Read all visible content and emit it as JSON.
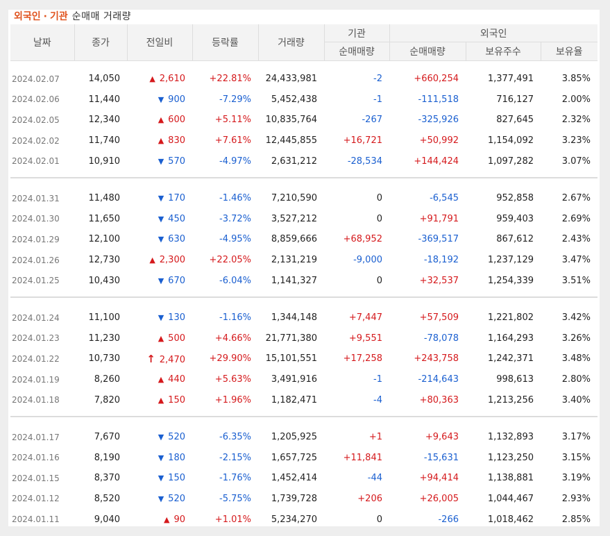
{
  "title": {
    "part1": "외국인",
    "sep": "·",
    "part2": "기관",
    "part3": "순매매 거래량"
  },
  "headers": {
    "date": "날짜",
    "close": "종가",
    "change": "전일비",
    "rate": "등락률",
    "volume": "거래량",
    "inst_group": "기관",
    "foreign_group": "외국인",
    "inst_net": "순매매량",
    "foreign_net": "순매매량",
    "holdings": "보유주수",
    "ratio": "보유율"
  },
  "colors": {
    "up": "#d5191c",
    "down": "#1a5fd0"
  },
  "groups": [
    [
      {
        "date": "2024.02.07",
        "close": "14,050",
        "dir": "up",
        "change": "2,610",
        "rate": "+22.81%",
        "volume": "24,433,981",
        "inst": "-2",
        "foreign": "+660,254",
        "holdings": "1,377,491",
        "ratio": "3.85%"
      },
      {
        "date": "2024.02.06",
        "close": "11,440",
        "dir": "down",
        "change": "900",
        "rate": "-7.29%",
        "volume": "5,452,438",
        "inst": "-1",
        "foreign": "-111,518",
        "holdings": "716,127",
        "ratio": "2.00%"
      },
      {
        "date": "2024.02.05",
        "close": "12,340",
        "dir": "up",
        "change": "600",
        "rate": "+5.11%",
        "volume": "10,835,764",
        "inst": "-267",
        "foreign": "-325,926",
        "holdings": "827,645",
        "ratio": "2.32%"
      },
      {
        "date": "2024.02.02",
        "close": "11,740",
        "dir": "up",
        "change": "830",
        "rate": "+7.61%",
        "volume": "12,445,855",
        "inst": "+16,721",
        "foreign": "+50,992",
        "holdings": "1,154,092",
        "ratio": "3.23%"
      },
      {
        "date": "2024.02.01",
        "close": "10,910",
        "dir": "down",
        "change": "570",
        "rate": "-4.97%",
        "volume": "2,631,212",
        "inst": "-28,534",
        "foreign": "+144,424",
        "holdings": "1,097,282",
        "ratio": "3.07%"
      }
    ],
    [
      {
        "date": "2024.01.31",
        "close": "11,480",
        "dir": "down",
        "change": "170",
        "rate": "-1.46%",
        "volume": "7,210,590",
        "inst": "0",
        "foreign": "-6,545",
        "holdings": "952,858",
        "ratio": "2.67%"
      },
      {
        "date": "2024.01.30",
        "close": "11,650",
        "dir": "down",
        "change": "450",
        "rate": "-3.72%",
        "volume": "3,527,212",
        "inst": "0",
        "foreign": "+91,791",
        "holdings": "959,403",
        "ratio": "2.69%"
      },
      {
        "date": "2024.01.29",
        "close": "12,100",
        "dir": "down",
        "change": "630",
        "rate": "-4.95%",
        "volume": "8,859,666",
        "inst": "+68,952",
        "foreign": "-369,517",
        "holdings": "867,612",
        "ratio": "2.43%"
      },
      {
        "date": "2024.01.26",
        "close": "12,730",
        "dir": "up",
        "change": "2,300",
        "rate": "+22.05%",
        "volume": "2,131,219",
        "inst": "-9,000",
        "foreign": "-18,192",
        "holdings": "1,237,129",
        "ratio": "3.47%"
      },
      {
        "date": "2024.01.25",
        "close": "10,430",
        "dir": "down",
        "change": "670",
        "rate": "-6.04%",
        "volume": "1,141,327",
        "inst": "0",
        "foreign": "+32,537",
        "holdings": "1,254,339",
        "ratio": "3.51%"
      }
    ],
    [
      {
        "date": "2024.01.24",
        "close": "11,100",
        "dir": "down",
        "change": "130",
        "rate": "-1.16%",
        "volume": "1,344,148",
        "inst": "+7,447",
        "foreign": "+57,509",
        "holdings": "1,221,802",
        "ratio": "3.42%"
      },
      {
        "date": "2024.01.23",
        "close": "11,230",
        "dir": "up",
        "change": "500",
        "rate": "+4.66%",
        "volume": "21,771,380",
        "inst": "+9,551",
        "foreign": "-78,078",
        "holdings": "1,164,293",
        "ratio": "3.26%"
      },
      {
        "date": "2024.01.22",
        "close": "10,730",
        "dir": "upper",
        "change": "2,470",
        "rate": "+29.90%",
        "volume": "15,101,551",
        "inst": "+17,258",
        "foreign": "+243,758",
        "holdings": "1,242,371",
        "ratio": "3.48%"
      },
      {
        "date": "2024.01.19",
        "close": "8,260",
        "dir": "up",
        "change": "440",
        "rate": "+5.63%",
        "volume": "3,491,916",
        "inst": "-1",
        "foreign": "-214,643",
        "holdings": "998,613",
        "ratio": "2.80%"
      },
      {
        "date": "2024.01.18",
        "close": "7,820",
        "dir": "up",
        "change": "150",
        "rate": "+1.96%",
        "volume": "1,182,471",
        "inst": "-4",
        "foreign": "+80,363",
        "holdings": "1,213,256",
        "ratio": "3.40%"
      }
    ],
    [
      {
        "date": "2024.01.17",
        "close": "7,670",
        "dir": "down",
        "change": "520",
        "rate": "-6.35%",
        "volume": "1,205,925",
        "inst": "+1",
        "foreign": "+9,643",
        "holdings": "1,132,893",
        "ratio": "3.17%"
      },
      {
        "date": "2024.01.16",
        "close": "8,190",
        "dir": "down",
        "change": "180",
        "rate": "-2.15%",
        "volume": "1,657,725",
        "inst": "+11,841",
        "foreign": "-15,631",
        "holdings": "1,123,250",
        "ratio": "3.15%"
      },
      {
        "date": "2024.01.15",
        "close": "8,370",
        "dir": "down",
        "change": "150",
        "rate": "-1.76%",
        "volume": "1,452,414",
        "inst": "-44",
        "foreign": "+94,414",
        "holdings": "1,138,881",
        "ratio": "3.19%"
      },
      {
        "date": "2024.01.12",
        "close": "8,520",
        "dir": "down",
        "change": "520",
        "rate": "-5.75%",
        "volume": "1,739,728",
        "inst": "+206",
        "foreign": "+26,005",
        "holdings": "1,044,467",
        "ratio": "2.93%"
      },
      {
        "date": "2024.01.11",
        "close": "9,040",
        "dir": "up",
        "change": "90",
        "rate": "+1.01%",
        "volume": "5,234,270",
        "inst": "0",
        "foreign": "-266",
        "holdings": "1,018,462",
        "ratio": "2.85%"
      }
    ]
  ]
}
